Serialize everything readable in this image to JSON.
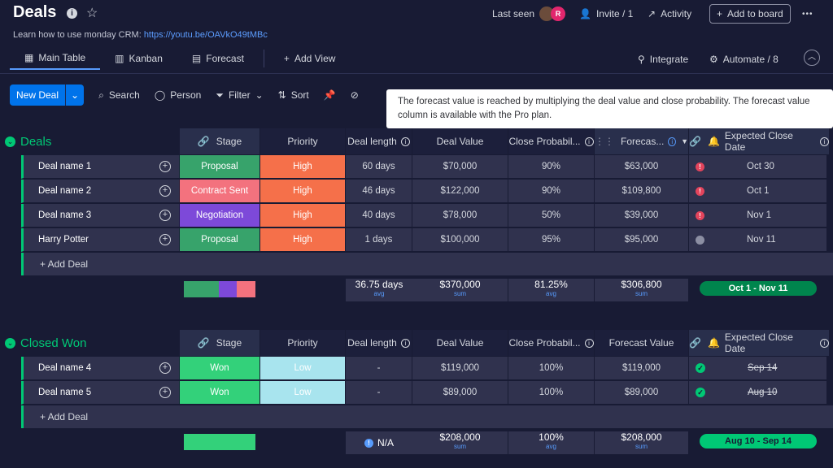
{
  "board": {
    "title": "Deals"
  },
  "header": {
    "last_seen": "Last seen",
    "avatar_letter": "R",
    "invite": "Invite / 1",
    "activity": "Activity",
    "add_to_board": "Add to board",
    "more": "•••"
  },
  "learn": {
    "text": "Learn how to use monday CRM:",
    "link": "https://youtu.be/OAVkO49tMBc"
  },
  "tabs": [
    {
      "label": "Main Table",
      "icon": "table-icon"
    },
    {
      "label": "Kanban",
      "icon": "kanban-icon"
    },
    {
      "label": "Forecast",
      "icon": "chart-icon"
    },
    {
      "label": "Add View",
      "icon": "plus-icon"
    }
  ],
  "right_actions": {
    "integrate": "Integrate",
    "automate": "Automate / 8"
  },
  "toolbar": {
    "new_deal": "New Deal",
    "search": "Search",
    "person": "Person",
    "filter": "Filter",
    "sort": "Sort"
  },
  "tooltip": "The forecast value is reached by multiplying the deal value and close probability. The forecast value column is available with the Pro plan.",
  "columns": {
    "stage": "Stage",
    "priority": "Priority",
    "deal_length": "Deal length",
    "deal_value": "Deal Value",
    "close_prob": "Close Probabil...",
    "forecast_short": "Forecas...",
    "forecast": "Forecast Value",
    "expected_close": "Expected Close Date"
  },
  "groups": [
    {
      "title": "Deals",
      "rows": [
        {
          "name": "Deal name 1",
          "stage": "Proposal",
          "stage_color": "#37a36b",
          "priority": "High",
          "priority_color": "#f5704a",
          "length": "60 days",
          "value": "$70,000",
          "prob": "90%",
          "forecast": "$63,000",
          "flag": "red",
          "close": "Oct 30"
        },
        {
          "name": "Deal name 2",
          "stage": "Contract Sent",
          "stage_color": "#f3727e",
          "priority": "High",
          "priority_color": "#f5704a",
          "length": "46 days",
          "value": "$122,000",
          "prob": "90%",
          "forecast": "$109,800",
          "flag": "red",
          "close": "Oct 1"
        },
        {
          "name": "Deal name 3",
          "stage": "Negotiation",
          "stage_color": "#7d49d9",
          "priority": "High",
          "priority_color": "#f5704a",
          "length": "40 days",
          "value": "$78,000",
          "prob": "50%",
          "forecast": "$39,000",
          "flag": "red",
          "close": "Nov 1"
        },
        {
          "name": "Harry Potter",
          "stage": "Proposal",
          "stage_color": "#37a36b",
          "priority": "High",
          "priority_color": "#f5704a",
          "length": "1 days",
          "value": "$100,000",
          "prob": "95%",
          "forecast": "$95,000",
          "flag": "grey",
          "close": "Nov 11"
        }
      ],
      "add_label": "+ Add Deal",
      "summary": {
        "length": "36.75 days",
        "length_sub": "avg",
        "value": "$370,000",
        "value_sub": "sum",
        "prob": "81.25%",
        "prob_sub": "avg",
        "forecast": "$306,800",
        "forecast_sub": "sum",
        "range": "Oct 1 - Nov 11"
      }
    },
    {
      "title": "Closed Won",
      "rows": [
        {
          "name": "Deal name 4",
          "stage": "Won",
          "stage_color": "#33d17a",
          "priority": "Low",
          "priority_color": "#a8e4ee",
          "length": "-",
          "value": "$119,000",
          "prob": "100%",
          "forecast": "$119,000",
          "flag": "check",
          "close": "Sep 14"
        },
        {
          "name": "Deal name 5",
          "stage": "Won",
          "stage_color": "#33d17a",
          "priority": "Low",
          "priority_color": "#a8e4ee",
          "length": "-",
          "value": "$89,000",
          "prob": "100%",
          "forecast": "$89,000",
          "flag": "check",
          "close": "Aug 10"
        }
      ],
      "add_label": "+ Add Deal",
      "summary": {
        "length": "N/A",
        "value": "$208,000",
        "value_sub": "sum",
        "prob": "100%",
        "prob_sub": "avg",
        "forecast": "$208,000",
        "forecast_sub": "sum",
        "range": "Aug 10 - Sep 14"
      }
    }
  ]
}
